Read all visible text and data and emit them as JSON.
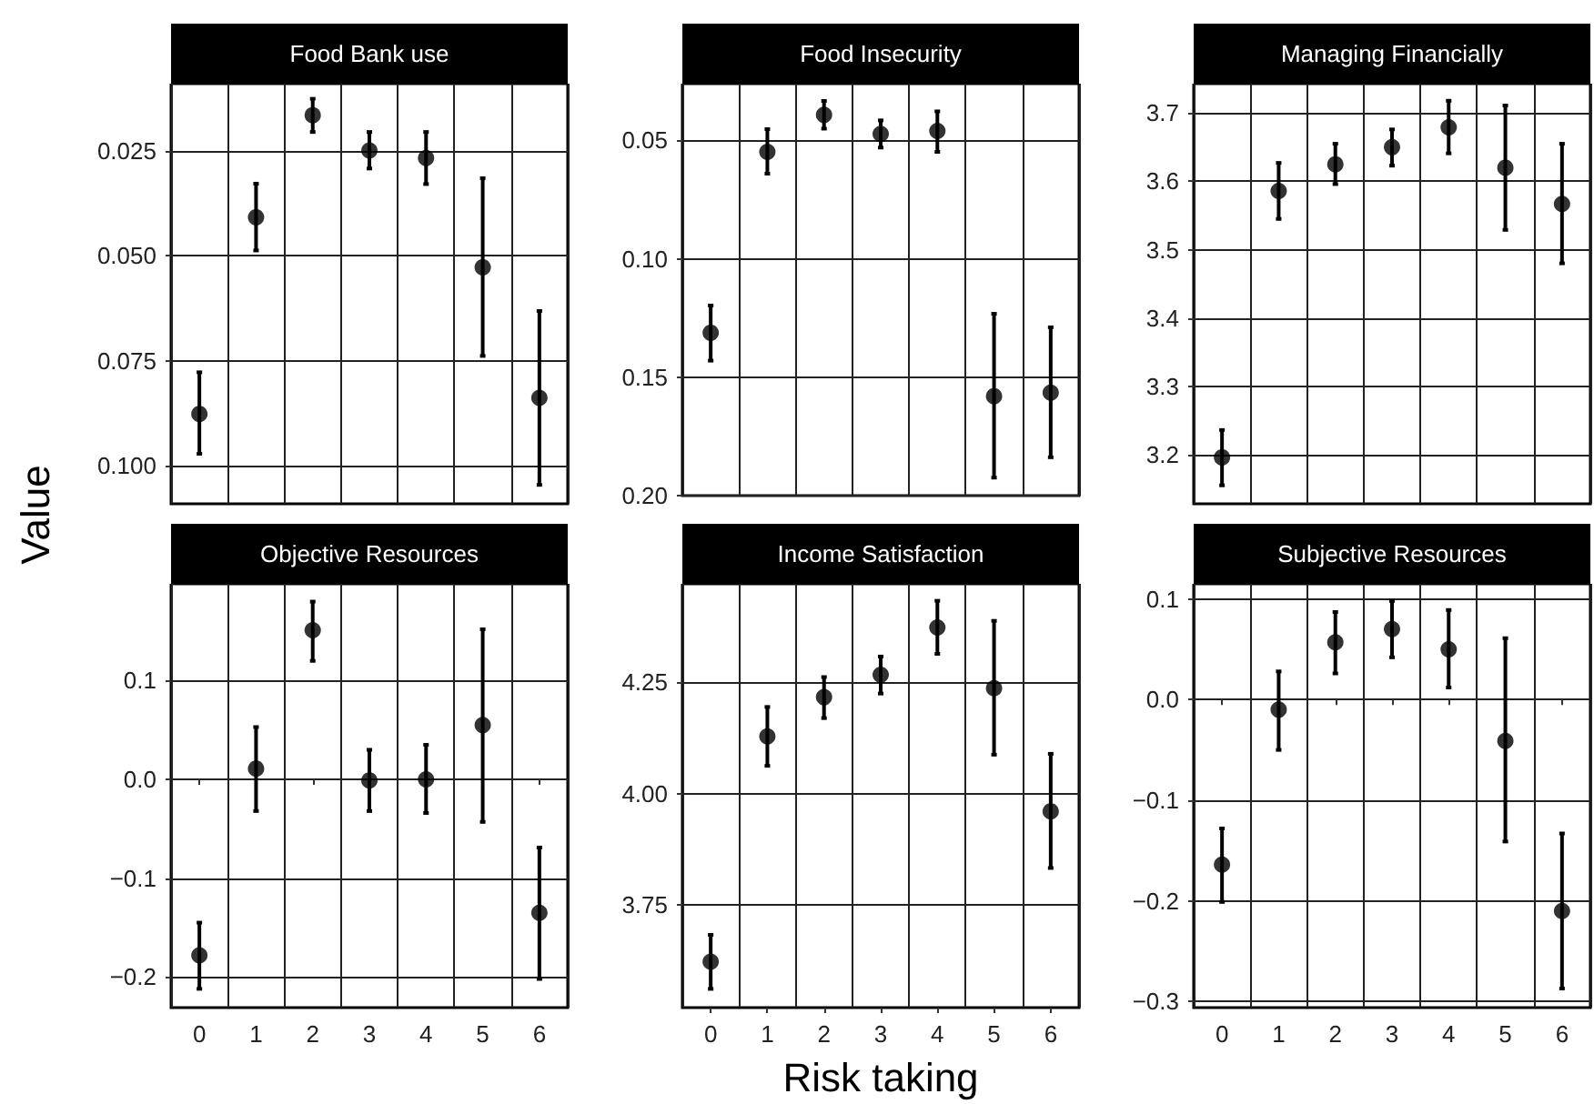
{
  "chart_data": [
    {
      "type": "scatter",
      "title": "Food Bank use",
      "ylabel": "Value",
      "categories": [
        "0",
        "1",
        "2",
        "3",
        "4",
        "5",
        "6"
      ],
      "ylim": [
        0.109,
        0.009
      ],
      "yticks": [
        0.025,
        {
          "value": 0.05,
          "label": "0.050"
        },
        0.075,
        {
          "value": 0.1,
          "label": "0.100"
        }
      ],
      "grid": true,
      "marker": "circle",
      "tick_labels": "y",
      "series": [
        {
          "color": "#000000",
          "values": [
            0.0876,
            0.0408,
            0.0165,
            0.0249,
            0.0267,
            0.0527,
            0.0838
          ],
          "errors": [
            [
              0.0777,
              0.0971
            ],
            [
              0.0328,
              0.0487
            ],
            [
              0.0126,
              0.0205
            ],
            [
              0.0205,
              0.0292
            ],
            [
              0.0205,
              0.0329
            ],
            [
              0.0315,
              0.0738
            ],
            [
              0.0631,
              0.1045
            ]
          ]
        }
      ]
    },
    {
      "type": "scatter",
      "title": "Food Insecurity",
      "categories": [
        "0",
        "1",
        "2",
        "3",
        "4",
        "5",
        "6"
      ],
      "ylim": [
        0.2,
        0.026
      ],
      "yticks": [
        0.05,
        {
          "value": 0.1,
          "label": "0.10"
        },
        0.15,
        {
          "value": 0.2,
          "label": "0.20"
        }
      ],
      "grid": true,
      "marker": "circle",
      "tick_labels": "y",
      "series": [
        {
          "color": "#000000",
          "values": [
            0.1312,
            0.0548,
            0.0392,
            0.0472,
            0.046,
            0.158,
            0.1565
          ],
          "errors": [
            [
              0.1197,
              0.143
            ],
            [
              0.0452,
              0.064
            ],
            [
              0.0333,
              0.045
            ],
            [
              0.0415,
              0.053
            ],
            [
              0.0377,
              0.0548
            ],
            [
              0.1232,
              0.1924
            ],
            [
              0.1289,
              0.1838
            ]
          ]
        }
      ]
    },
    {
      "type": "scatter",
      "title": "Managing Financially",
      "categories": [
        "0",
        "1",
        "2",
        "3",
        "4",
        "5",
        "6"
      ],
      "ylim": [
        3.128,
        3.743
      ],
      "yticks": [
        3.2,
        3.3,
        3.4,
        3.5,
        3.6,
        3.7
      ],
      "grid": true,
      "marker": "circle",
      "tick_labels": "y",
      "series": [
        {
          "color": "#000000",
          "values": [
            3.196,
            3.586,
            3.625,
            3.65,
            3.679,
            3.62,
            3.567
          ],
          "errors": [
            [
              3.155,
              3.236
            ],
            [
              3.545,
              3.627
            ],
            [
              3.596,
              3.655
            ],
            [
              3.623,
              3.676
            ],
            [
              3.641,
              3.718
            ],
            [
              3.529,
              3.711
            ],
            [
              3.48,
              3.655
            ]
          ]
        }
      ]
    },
    {
      "type": "scatter",
      "title": "Objective Resources",
      "categories": [
        "0",
        "1",
        "2",
        "3",
        "4",
        "5",
        "6"
      ],
      "ylim": [
        -0.231,
        0.198
      ],
      "yticks": [
        {
          "value": -0.2,
          "label": "−0.2"
        },
        {
          "value": -0.1,
          "label": "−0.1"
        },
        {
          "value": 0,
          "label": "0.0"
        },
        0.1
      ],
      "grid": true,
      "marker": "circle",
      "series": [
        {
          "color": "#000000",
          "values": [
            -0.178,
            0.011,
            0.151,
            -0.001,
            0,
            0.055,
            -0.135
          ],
          "errors": [
            [
              -0.212,
              -0.145
            ],
            [
              -0.032,
              0.053
            ],
            [
              0.12,
              0.18
            ],
            [
              -0.032,
              0.03
            ],
            [
              -0.034,
              0.035
            ],
            [
              -0.043,
              0.152
            ],
            [
              -0.202,
              -0.069
            ]
          ]
        }
      ]
    },
    {
      "type": "scatter",
      "title": "Income Satisfaction",
      "xlabel": "Risk taking",
      "categories": [
        "0",
        "1",
        "2",
        "3",
        "4",
        "5",
        "6"
      ],
      "ylim": [
        3.52,
        4.47
      ],
      "yticks": [
        3.75,
        {
          "value": 4,
          "label": "4.00"
        },
        4.25
      ],
      "grid": true,
      "marker": "circle",
      "series": [
        {
          "color": "#000000",
          "values": [
            3.623,
            4.128,
            4.216,
            4.266,
            4.372,
            4.236,
            3.96
          ],
          "errors": [
            [
              3.562,
              3.683
            ],
            [
              4.062,
              4.194
            ],
            [
              4.169,
              4.261
            ],
            [
              4.224,
              4.307
            ],
            [
              4.313,
              4.432
            ],
            [
              4.087,
              4.387
            ],
            [
              3.833,
              4.089
            ]
          ]
        }
      ]
    },
    {
      "type": "scatter",
      "title": "Subjective Resources",
      "categories": [
        "0",
        "1",
        "2",
        "3",
        "4",
        "5",
        "6"
      ],
      "ylim": [
        -0.306,
        0.115
      ],
      "yticks": [
        {
          "value": -0.3,
          "label": "−0.3"
        },
        {
          "value": -0.2,
          "label": "−0.2"
        },
        {
          "value": -0.1,
          "label": "−0.1"
        },
        {
          "value": 0,
          "label": "0.0"
        },
        0.1
      ],
      "grid": true,
      "marker": "circle",
      "series": [
        {
          "color": "#000000",
          "values": [
            -0.164,
            -0.01,
            0.057,
            0.07,
            0.05,
            -0.041,
            -0.21
          ],
          "errors": [
            [
              -0.201,
              -0.128
            ],
            [
              -0.05,
              0.028
            ],
            [
              0.026,
              0.087
            ],
            [
              0.042,
              0.098
            ],
            [
              0.012,
              0.089
            ],
            [
              -0.141,
              0.061
            ],
            [
              -0.287,
              -0.133
            ]
          ]
        }
      ]
    }
  ]
}
